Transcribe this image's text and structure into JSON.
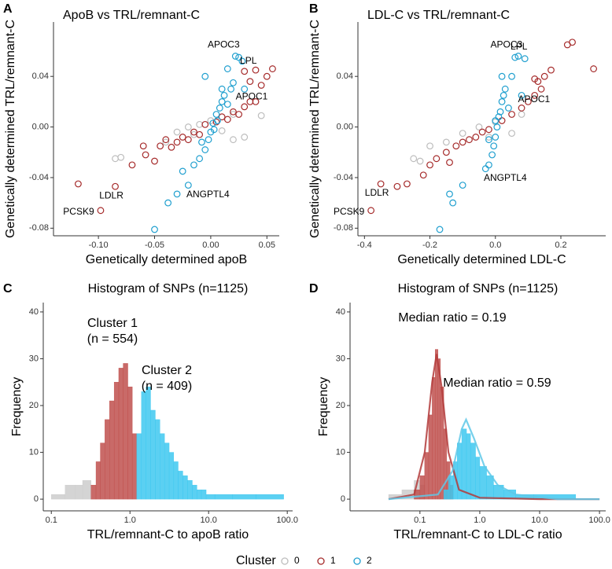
{
  "chart_data": [
    {
      "type": "scatter",
      "panel": "A",
      "title": "ApoB vs TRL/remnant-C",
      "xlabel": "Genetically determined apoB",
      "ylabel": "Genetically determined TRL/remnant-C",
      "xlim": [
        -0.14,
        0.061
      ],
      "ylim": [
        -0.086,
        0.083
      ],
      "xticks": [
        {
          "value": -0.1,
          "label": "-0.10"
        },
        -0.05,
        {
          "value": 0,
          "label": "0.00"
        },
        0.05
      ],
      "yticks": [
        -0.08,
        -0.04,
        {
          "value": 0,
          "label": "0.00"
        },
        0.04
      ],
      "series": [
        {
          "color": "#bdbdbd",
          "x": [
            -0.085,
            -0.08,
            -0.04,
            -0.03,
            -0.02,
            -0.01,
            0,
            0.01,
            0.02,
            0.03,
            0.02,
            0.045,
            -0.015
          ],
          "y": [
            -0.025,
            -0.024,
            -0.012,
            -0.004,
            0,
            0.002,
            0.005,
            -0.003,
            0.01,
            -0.008,
            -0.01,
            0.009,
            -0.006
          ]
        },
        {
          "color": "#a52a2a",
          "x": [
            -0.118,
            -0.098,
            -0.085,
            -0.07,
            -0.058,
            -0.05,
            -0.045,
            -0.04,
            -0.035,
            -0.03,
            -0.025,
            -0.02,
            -0.015,
            -0.01,
            -0.005,
            0.005,
            0.01,
            0.015,
            0.02,
            0.025,
            0.03,
            0.035,
            0.04,
            0.045,
            0.05,
            0.055,
            0.04,
            0.03,
            0.035,
            -0.06
          ],
          "y": [
            -0.045,
            -0.066,
            -0.047,
            -0.03,
            -0.022,
            -0.027,
            -0.015,
            -0.01,
            -0.016,
            -0.012,
            -0.008,
            -0.01,
            -0.004,
            -0.006,
            0.002,
            0.004,
            0.008,
            0.006,
            0.012,
            0.01,
            0.016,
            0.02,
            0.02,
            0.033,
            0.04,
            0.046,
            0.045,
            0.044,
            0.036,
            -0.015
          ]
        },
        {
          "color": "#1f9fcf",
          "x": [
            -0.05,
            -0.038,
            -0.03,
            -0.02,
            -0.025,
            -0.015,
            -0.01,
            -0.005,
            -0.002,
            0,
            0.002,
            0.005,
            0.008,
            0.01,
            0.012,
            0.015,
            0.018,
            0.02,
            0.025,
            0.022,
            0.028,
            0.015,
            -0.005,
            0.006,
            -0.008,
            0.003,
            0.03,
            0.01
          ],
          "y": [
            -0.081,
            -0.06,
            -0.053,
            -0.046,
            -0.035,
            -0.03,
            -0.025,
            -0.018,
            -0.01,
            -0.004,
            0.003,
            0.01,
            0.015,
            0.02,
            0.025,
            0.018,
            0.03,
            0.035,
            0.055,
            0.056,
            0.052,
            0.046,
            0.04,
            0.005,
            -0.012,
            -0.002,
            0.03,
            0.03
          ]
        }
      ],
      "annotations": [
        {
          "text": "APOC3",
          "x": 0.022,
          "y": 0.056
        },
        {
          "text": "LPL",
          "x": 0.03,
          "y": 0.044
        },
        {
          "text": "APOC1",
          "x": 0.04,
          "y": 0.038
        },
        {
          "text": "LDLR",
          "x": -0.085,
          "y": -0.047
        },
        {
          "text": "PCSK9",
          "x": -0.098,
          "y": -0.066
        },
        {
          "text": "ANGPTL4",
          "x": -0.02,
          "y": -0.046
        }
      ]
    },
    {
      "type": "scatter",
      "panel": "B",
      "title": "LDL-C vs TRL/remnant-C",
      "xlabel": "Genetically determined LDL-C",
      "ylabel": "Genetically determined TRL/remnant-C",
      "xlim": [
        -0.42,
        0.337
      ],
      "ylim": [
        -0.086,
        0.083
      ],
      "xticks": [
        -0.4,
        -0.2,
        {
          "value": 0,
          "label": "0.0"
        },
        0.2
      ],
      "yticks": [
        -0.08,
        -0.04,
        {
          "value": 0,
          "label": "0.00"
        },
        0.04
      ],
      "series": [
        {
          "color": "#bdbdbd",
          "x": [
            -0.25,
            -0.23,
            -0.2,
            -0.15,
            -0.1,
            -0.05,
            0,
            0.05,
            0.08,
            -0.02
          ],
          "y": [
            -0.025,
            -0.027,
            -0.015,
            -0.012,
            -0.005,
            0,
            0.004,
            -0.005,
            0.01,
            -0.008
          ]
        },
        {
          "color": "#a52a2a",
          "x": [
            -0.35,
            -0.38,
            -0.3,
            -0.27,
            -0.22,
            -0.2,
            -0.18,
            -0.15,
            -0.12,
            -0.1,
            -0.08,
            -0.06,
            -0.04,
            -0.02,
            0.02,
            0.05,
            0.08,
            0.1,
            0.12,
            0.14,
            0.15,
            0.17,
            0.22,
            0.235,
            0.3,
            0.12,
            0.13,
            -0.14
          ],
          "y": [
            -0.045,
            -0.066,
            -0.047,
            -0.045,
            -0.038,
            -0.03,
            -0.025,
            -0.02,
            -0.015,
            -0.012,
            -0.01,
            -0.008,
            -0.004,
            -0.002,
            0.005,
            0.01,
            0.015,
            0.02,
            0.025,
            0.03,
            0.04,
            0.045,
            0.065,
            0.067,
            0.046,
            0.038,
            0.036,
            -0.028
          ]
        },
        {
          "color": "#1f9fcf",
          "x": [
            -0.17,
            -0.13,
            -0.14,
            -0.1,
            -0.03,
            -0.02,
            -0.01,
            -0.005,
            0,
            0.005,
            0.01,
            0.015,
            0.02,
            0.025,
            0.03,
            0.06,
            0.07,
            0.09,
            0.05,
            0.02,
            -0.02,
            0.04,
            0.08,
            0
          ],
          "y": [
            -0.081,
            -0.06,
            -0.053,
            -0.046,
            -0.033,
            -0.03,
            -0.022,
            -0.015,
            -0.008,
            0,
            0.008,
            0.012,
            0.02,
            0.025,
            0.03,
            0.055,
            0.056,
            0.054,
            0.04,
            0.04,
            -0.01,
            0.015,
            0.025,
            0.005
          ]
        }
      ],
      "annotations": [
        {
          "text": "APOC3",
          "x": 0.07,
          "y": 0.056
        },
        {
          "text": "LPL",
          "x": 0.06,
          "y": 0.055
        },
        {
          "text": "APOC1",
          "x": 0.13,
          "y": 0.036
        },
        {
          "text": "LDLR",
          "x": -0.35,
          "y": -0.045
        },
        {
          "text": "PCSK9",
          "x": -0.38,
          "y": -0.066
        },
        {
          "text": "ANGPTL4",
          "x": -0.03,
          "y": -0.033
        }
      ]
    },
    {
      "type": "histogram",
      "panel": "C",
      "title": "Histogram of SNPs (n=1125)",
      "xlabel": "TRL/remnant-C to apoB ratio",
      "ylabel": "Frequency",
      "xscale": "log",
      "xlim": [
        0.079,
        117
      ],
      "ylim": [
        -2.5,
        42
      ],
      "xticks": [
        0.1,
        {
          "value": 1,
          "label": "1.0"
        },
        {
          "value": 10,
          "label": "10.0"
        },
        {
          "value": 100,
          "label": "100.0"
        }
      ],
      "yticks": [
        0,
        10,
        20,
        30,
        40
      ],
      "series": [
        {
          "color": "#cccccc",
          "bins": [
            0.1,
            0.15,
            0.2,
            0.25,
            0.32
          ],
          "values": [
            1,
            3,
            3,
            4
          ]
        },
        {
          "color": "#c0504d",
          "bins": [
            0.32,
            0.37,
            0.42,
            0.48,
            0.55,
            0.63,
            0.72,
            0.82,
            0.94,
            1.07,
            1.22
          ],
          "values": [
            3,
            8,
            12,
            17,
            21,
            25,
            28,
            29,
            24,
            14
          ]
        },
        {
          "color": "#3ec8f0",
          "bins": [
            1.22,
            1.4,
            1.6,
            1.83,
            2.1,
            2.4,
            2.75,
            3.15,
            3.6,
            4.1,
            4.7,
            5.4,
            6.2,
            7.1,
            8.1,
            9.3,
            12,
            20,
            40,
            90
          ],
          "values": [
            14,
            23,
            24,
            19,
            17,
            14,
            12,
            10,
            8,
            6,
            5,
            4,
            3,
            2,
            2,
            1,
            1,
            1,
            1
          ]
        }
      ],
      "annotations": [
        "Cluster 1",
        "(n = 554)",
        "Cluster 2",
        "(n = 409)"
      ]
    },
    {
      "type": "histogram",
      "panel": "D",
      "title": "Histogram of SNPs (n=1125)",
      "xlabel": "TRL/remnant-C to LDL-C ratio",
      "ylabel": "Frequency",
      "xscale": "log",
      "xlim": [
        0.0068,
        127
      ],
      "ylim": [
        -2.5,
        42
      ],
      "xticks": [
        0.1,
        {
          "value": 1,
          "label": "1.0"
        },
        {
          "value": 10,
          "label": "10.0"
        },
        {
          "value": 100,
          "label": "100.0"
        }
      ],
      "yticks": [
        0,
        10,
        20,
        30,
        40
      ],
      "series": [
        {
          "color": "#cccccc",
          "bins": [
            0.03,
            0.05,
            0.08,
            0.1,
            0.12
          ],
          "values": [
            1,
            2,
            4,
            3
          ]
        },
        {
          "color": "#c0504d",
          "bins": [
            0.08,
            0.1,
            0.12,
            0.14,
            0.16,
            0.18,
            0.2,
            0.22,
            0.25,
            0.28,
            0.32,
            0.36
          ],
          "values": [
            2,
            5,
            10,
            18,
            26,
            32,
            30,
            24,
            15,
            8,
            3
          ]
        },
        {
          "color": "#3ec8f0",
          "bins": [
            0.25,
            0.3,
            0.36,
            0.42,
            0.5,
            0.6,
            0.7,
            0.85,
            1.0,
            1.3,
            1.7,
            2.5,
            4,
            8,
            40
          ],
          "values": [
            2,
            5,
            8,
            12,
            15,
            14,
            12,
            9,
            7,
            5,
            3,
            2,
            1,
            1
          ]
        }
      ],
      "curves": [
        {
          "color": "#b33b3b",
          "x": [
            0.03,
            0.08,
            0.12,
            0.16,
            0.19,
            0.23,
            0.3,
            0.45,
            1,
            10,
            100
          ],
          "values": [
            0,
            1,
            10,
            25,
            31,
            24,
            10,
            2,
            0.3,
            0,
            0
          ]
        },
        {
          "color": "#5fc8e8",
          "x": [
            0.03,
            0.2,
            0.35,
            0.5,
            0.59,
            0.8,
            1.2,
            2,
            4,
            20,
            100
          ],
          "values": [
            0,
            1,
            6,
            15,
            17,
            13,
            7,
            3,
            1,
            0,
            0
          ]
        }
      ],
      "annotations": [
        "Median ratio = 0.19",
        "Median ratio = 0.59"
      ]
    }
  ],
  "legend": {
    "title": "Cluster",
    "items": [
      {
        "name": "0",
        "color": "#bdbdbd"
      },
      {
        "name": "1",
        "color": "#a52a2a"
      },
      {
        "name": "2",
        "color": "#1f9fcf"
      }
    ]
  }
}
